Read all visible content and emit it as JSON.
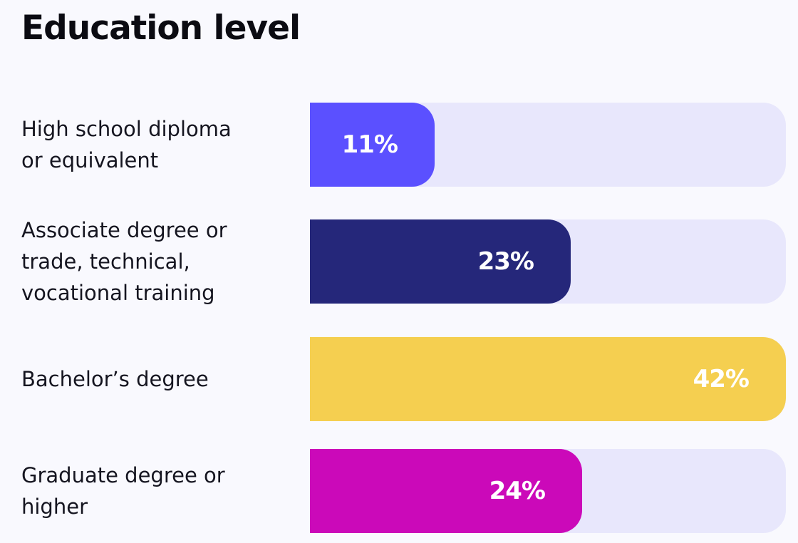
{
  "chart_data": {
    "type": "bar",
    "orientation": "horizontal",
    "title": "Education level",
    "categories": [
      "High school diploma\nor equivalent",
      "Associate degree or\ntrade, technical,\nvocational training",
      "Bachelor’s degree",
      "Graduate degree or\nhigher"
    ],
    "values": [
      11,
      23,
      42,
      24
    ],
    "value_labels": [
      "11%",
      "23%",
      "42%",
      "24%"
    ],
    "xlim": [
      0,
      42
    ],
    "grid": false,
    "legend": "none",
    "colors": [
      "#5b50ff",
      "#25277a",
      "#f5cf50",
      "#cb09b9"
    ],
    "track_color": "#e8e7fc"
  }
}
